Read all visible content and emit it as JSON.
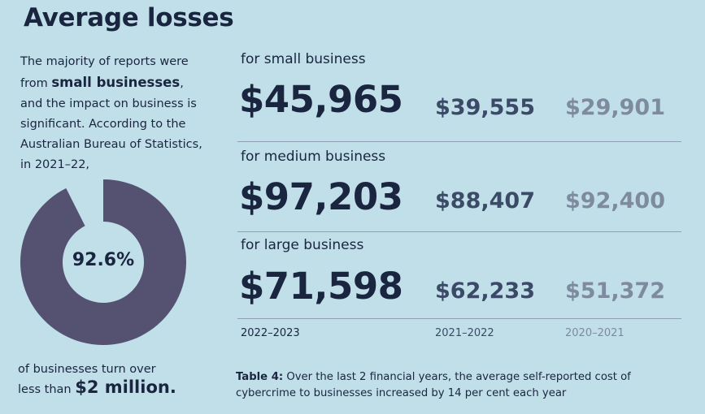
{
  "title": "Average losses",
  "intro": {
    "line1": "The majority of reports were",
    "line2_pre": "from ",
    "line2_bold": "small businesses",
    "line2_post": ",",
    "rest": "and the impact on business is significant. According to the Australian Bureau of Statistics, in 2021–22,"
  },
  "donut": {
    "percent_label": "92.6%",
    "percent_value": 92.6,
    "fill_color": "#545270"
  },
  "bottom_note": {
    "line1": "of businesses turn over",
    "line2_pre": "less than ",
    "line2_bold": "$2 million."
  },
  "sections": [
    {
      "label": "for small business",
      "v2023": "$45,965",
      "v2022": "$39,555",
      "v2021": "$29,901"
    },
    {
      "label": "for medium business",
      "v2023": "$97,203",
      "v2022": "$88,407",
      "v2021": "$92,400"
    },
    {
      "label": "for large business",
      "v2023": "$71,598",
      "v2022": "$62,233",
      "v2021": "$51,372"
    }
  ],
  "years": [
    "2022–2023",
    "2021–2022",
    "2020–2021"
  ],
  "caption": {
    "bold": "Table 4:",
    "text": " Over the last 2 financial years, the average self-reported cost of cybercrime to businesses increased by 14 per cent each year"
  },
  "colors": {
    "background": "#c1dfe9",
    "dark": "#1a2540",
    "mid": "#3b4a66",
    "light": "#7e8b9f"
  }
}
